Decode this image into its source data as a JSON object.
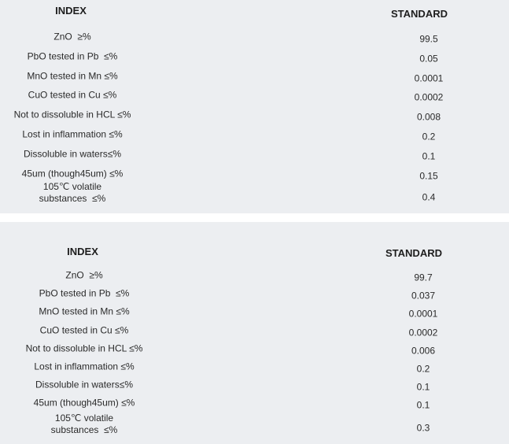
{
  "tables": [
    {
      "header_index": "INDEX",
      "header_standard": "STANDARD",
      "rows": [
        {
          "index": "ZnO  ≥%",
          "standard": "99.5"
        },
        {
          "index": "PbO tested in Pb  ≤%",
          "standard": "0.05"
        },
        {
          "index": "MnO tested in Mn ≤%",
          "standard": "0.0001"
        },
        {
          "index": "CuO tested in Cu ≤%",
          "standard": "0.0002"
        },
        {
          "index": "Not to dissoluble in HCL ≤%",
          "standard": "0.008"
        },
        {
          "index": "Lost in inflammation ≤%",
          "standard": "0.2"
        },
        {
          "index": "Dissoluble in waters≤%",
          "standard": "0.1"
        },
        {
          "index": "45um (though45um) ≤%",
          "standard": "0.15"
        },
        {
          "index": "105℃ volatile\nsubstances  ≤%",
          "standard": "0.4"
        }
      ]
    },
    {
      "header_index": "INDEX",
      "header_standard": "STANDARD",
      "rows": [
        {
          "index": "ZnO  ≥%",
          "standard": "99.7"
        },
        {
          "index": "PbO tested in Pb  ≤%",
          "standard": "0.037"
        },
        {
          "index": "MnO tested in Mn ≤%",
          "standard": "0.0001"
        },
        {
          "index": "CuO tested in Cu ≤%",
          "standard": "0.0002"
        },
        {
          "index": "Not to dissoluble in HCL ≤%",
          "standard": "0.006"
        },
        {
          "index": "Lost in inflammation ≤%",
          "standard": "0.2"
        },
        {
          "index": "Dissoluble in waters≤%",
          "standard": "0.1"
        },
        {
          "index": "45um (though45um) ≤%",
          "standard": "0.1"
        },
        {
          "index": "105℃ volatile\nsubstances  ≤%",
          "standard": "0.3"
        }
      ]
    }
  ]
}
